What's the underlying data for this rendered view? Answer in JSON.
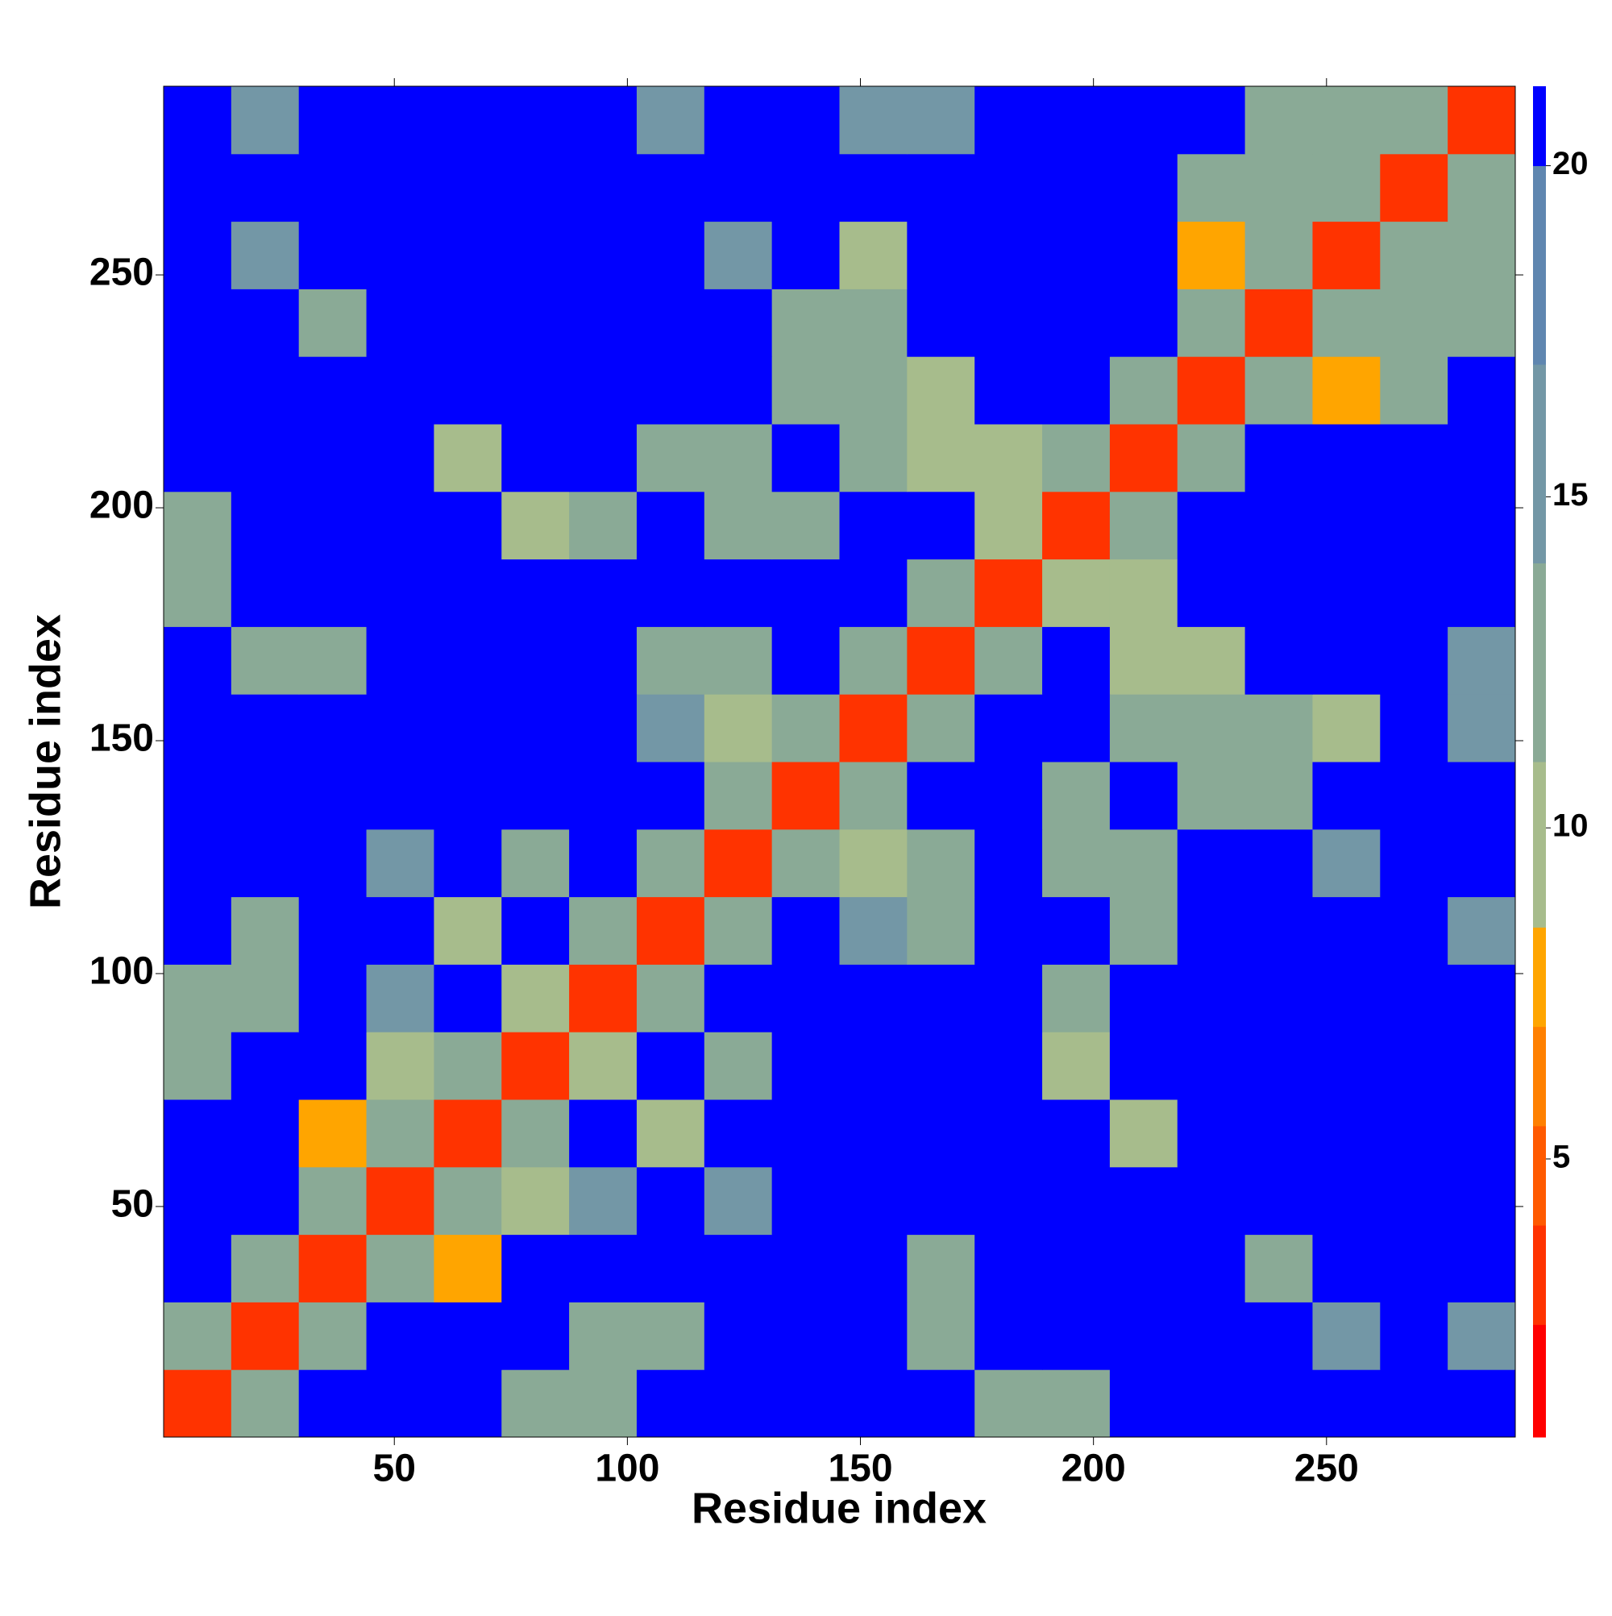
{
  "chart_data": {
    "type": "heatmap",
    "x_label": "Residue index",
    "y_label": "Residue index",
    "x": [
      7.75,
      22.25,
      36.75,
      51.25,
      65.75,
      80.25,
      94.75,
      109.25,
      123.75,
      138.25,
      152.75,
      167.25,
      181.75,
      196.25,
      210.75,
      225.25,
      239.75,
      254.25,
      268.75,
      283.25
    ],
    "y": [
      7.75,
      22.25,
      36.75,
      51.25,
      65.75,
      80.25,
      94.75,
      109.25,
      123.75,
      138.25,
      152.75,
      167.25,
      181.75,
      196.25,
      210.75,
      225.25,
      239.75,
      254.25,
      268.75,
      283.25
    ],
    "z": [
      [
        3,
        11,
        21,
        21,
        21,
        11,
        11,
        21,
        21,
        21,
        21,
        21,
        13,
        13,
        21,
        21,
        21,
        21,
        21,
        21
      ],
      [
        11,
        3,
        11,
        21,
        21,
        21,
        11,
        11,
        21,
        21,
        21,
        11,
        21,
        21,
        21,
        21,
        21,
        14,
        21,
        14
      ],
      [
        21,
        11,
        3,
        11,
        8,
        21,
        21,
        21,
        21,
        21,
        21,
        11,
        21,
        21,
        21,
        21,
        12,
        21,
        21,
        21
      ],
      [
        21,
        21,
        11,
        3,
        11,
        9,
        15,
        21,
        15,
        21,
        21,
        21,
        21,
        21,
        21,
        21,
        21,
        21,
        21,
        21
      ],
      [
        21,
        21,
        8,
        11,
        3,
        11,
        21,
        10,
        21,
        21,
        21,
        21,
        21,
        21,
        9,
        21,
        21,
        21,
        21,
        21
      ],
      [
        11,
        21,
        21,
        9,
        11,
        3,
        9,
        21,
        13,
        21,
        21,
        21,
        21,
        9,
        21,
        21,
        21,
        21,
        21,
        21
      ],
      [
        11,
        11,
        21,
        15,
        21,
        9,
        3,
        11,
        21,
        21,
        21,
        21,
        21,
        13,
        21,
        21,
        21,
        21,
        21,
        21
      ],
      [
        21,
        11,
        21,
        21,
        10,
        21,
        11,
        3,
        11,
        21,
        14,
        13,
        21,
        21,
        13,
        21,
        21,
        21,
        21,
        14
      ],
      [
        21,
        21,
        21,
        15,
        21,
        13,
        21,
        11,
        3,
        11,
        10,
        13,
        21,
        13,
        13,
        21,
        21,
        15,
        21,
        21
      ],
      [
        21,
        21,
        21,
        21,
        21,
        21,
        21,
        21,
        11,
        3,
        11,
        21,
        21,
        13,
        21,
        13,
        13,
        21,
        21,
        21
      ],
      [
        21,
        21,
        21,
        21,
        21,
        21,
        21,
        14,
        10,
        11,
        3,
        11,
        21,
        21,
        12,
        12,
        12,
        10,
        21,
        14
      ],
      [
        21,
        11,
        11,
        21,
        21,
        21,
        21,
        13,
        13,
        21,
        11,
        3,
        11,
        21,
        10,
        10,
        21,
        21,
        21,
        14
      ],
      [
        13,
        21,
        21,
        21,
        21,
        21,
        21,
        21,
        21,
        21,
        21,
        11,
        3,
        9,
        10,
        21,
        21,
        21,
        21,
        21
      ],
      [
        13,
        21,
        21,
        21,
        21,
        9,
        13,
        21,
        13,
        13,
        21,
        21,
        9,
        3,
        11,
        21,
        21,
        21,
        21,
        21
      ],
      [
        21,
        21,
        21,
        21,
        9,
        21,
        21,
        13,
        13,
        21,
        12,
        10,
        10,
        11,
        3,
        11,
        21,
        21,
        21,
        21
      ],
      [
        21,
        21,
        21,
        21,
        21,
        21,
        21,
        21,
        21,
        13,
        12,
        10,
        21,
        21,
        11,
        3,
        11,
        8,
        13,
        21
      ],
      [
        21,
        21,
        12,
        21,
        21,
        21,
        21,
        21,
        21,
        13,
        12,
        21,
        21,
        21,
        21,
        11,
        3,
        11,
        12,
        13
      ],
      [
        21,
        14,
        21,
        21,
        21,
        21,
        21,
        21,
        15,
        21,
        10,
        21,
        21,
        21,
        21,
        8,
        11,
        3,
        11,
        12
      ],
      [
        21,
        21,
        21,
        21,
        21,
        21,
        21,
        21,
        21,
        21,
        21,
        21,
        21,
        21,
        21,
        13,
        12,
        11,
        3,
        11
      ],
      [
        21,
        14,
        21,
        21,
        21,
        21,
        21,
        14,
        21,
        21,
        14,
        14,
        21,
        21,
        21,
        21,
        13,
        12,
        11,
        3
      ]
    ],
    "xlim": [
      0.5,
      290.5
    ],
    "ylim": [
      0.5,
      290.5
    ],
    "xticks": [
      50,
      100,
      150,
      200,
      250
    ],
    "yticks": [
      50,
      100,
      150,
      200,
      250
    ],
    "clim": [
      0.8,
      21.2
    ],
    "cticks": [
      5,
      10,
      15,
      20
    ],
    "color_bounds": [
      2.5,
      4,
      5.5,
      7,
      8.5,
      11,
      14,
      17,
      20
    ],
    "colors": [
      "#ff0000",
      "#ff3300",
      "#ff5a00",
      "#ff8000",
      "#ffa500",
      "#a7bc8c",
      "#8aaa96",
      "#7397a6",
      "#5f86b0",
      "#0000ff"
    ]
  }
}
